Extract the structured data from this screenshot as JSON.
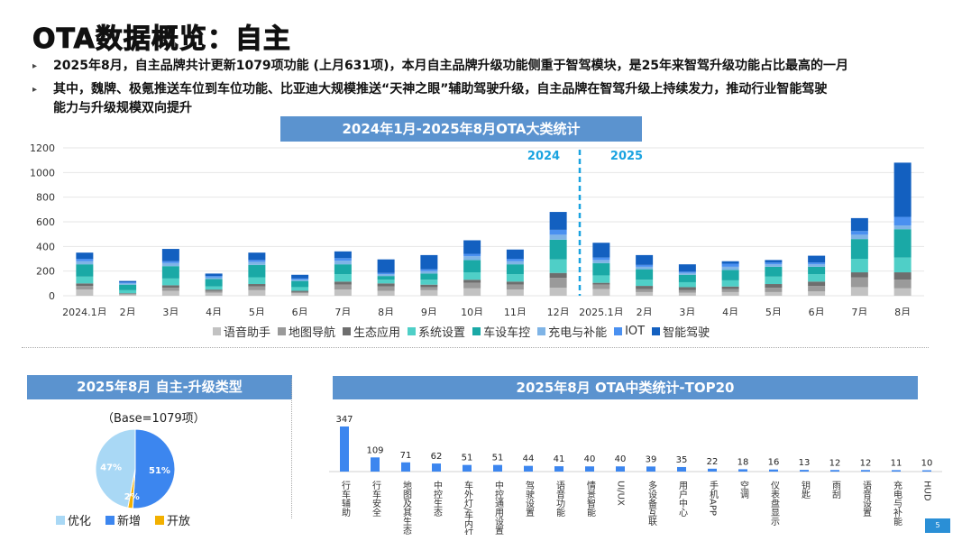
{
  "header": {
    "title": "OTA数据概览：自主",
    "bullets": [
      "2025年8月，自主品牌共计更新1079项功能 (上月631项)，本月自主品牌升级功能侧重于智驾模块，是25年来智驾升级功能占比最高的一月",
      "其中，魏牌、极氪推送车位到车位功能、比亚迪大规模推送“天神之眼”辅助驾驶升级，自主品牌在智驾升级上持续发力，推动行业智能驾驶",
      "能力与升级规模双向提升"
    ]
  },
  "banners": {
    "main_chart": "2024年1月-2025年8月OTA大类统计",
    "pie": "2025年8月 自主-升级类型",
    "top20": "2025年8月 OTA中类统计-TOP20"
  },
  "colors": {
    "banner": "#5b93cf",
    "series": [
      "#c2c2c2",
      "#9a9a9a",
      "#6e6e6e",
      "#4fcfc7",
      "#1aa9a6",
      "#7fb4e6",
      "#4a90f0",
      "#1360c0"
    ],
    "pie": [
      "#a9d8f5",
      "#3c86ef",
      "#f2b000"
    ],
    "top20_bar": "#3c86ef",
    "divider": "#1aa3e0"
  },
  "chart_data": [
    {
      "type": "stacked_bar",
      "title": "2024年1月-2025年8月OTA大类统计",
      "categories": [
        "2024.1月",
        "2月",
        "3月",
        "4月",
        "5月",
        "6月",
        "7月",
        "8月",
        "9月",
        "10月",
        "11月",
        "12月",
        "2025.1月",
        "2月",
        "3月",
        "4月",
        "5月",
        "6月",
        "7月",
        "8月"
      ],
      "ylim": [
        0,
        1200
      ],
      "yticks": [
        0,
        200,
        400,
        600,
        800,
        1000,
        1200
      ],
      "grid": true,
      "divider_labels": [
        "2024",
        "2025"
      ],
      "legend_position": "bottom",
      "series": [
        {
          "name": "语音助手",
          "values": [
            50,
            10,
            40,
            25,
            45,
            20,
            50,
            40,
            45,
            60,
            50,
            65,
            55,
            30,
            25,
            30,
            30,
            35,
            70,
            60
          ]
        },
        {
          "name": "地图导航",
          "values": [
            30,
            5,
            25,
            15,
            30,
            10,
            40,
            35,
            25,
            45,
            40,
            80,
            35,
            25,
            20,
            25,
            35,
            45,
            80,
            70
          ]
        },
        {
          "name": "生态应用",
          "values": [
            20,
            5,
            20,
            10,
            20,
            10,
            25,
            25,
            20,
            25,
            25,
            40,
            15,
            25,
            25,
            20,
            30,
            35,
            40,
            60
          ]
        },
        {
          "name": "系统设置",
          "values": [
            55,
            25,
            55,
            25,
            55,
            30,
            60,
            30,
            40,
            60,
            60,
            110,
            60,
            50,
            40,
            50,
            60,
            60,
            110,
            120
          ]
        },
        {
          "name": "车设车控",
          "values": [
            100,
            45,
            100,
            60,
            100,
            50,
            80,
            30,
            50,
            100,
            80,
            160,
            100,
            85,
            60,
            85,
            80,
            60,
            160,
            230
          ]
        },
        {
          "name": "充电与补能",
          "values": [
            25,
            10,
            25,
            15,
            25,
            10,
            30,
            15,
            20,
            30,
            25,
            40,
            25,
            20,
            15,
            25,
            20,
            20,
            35,
            30
          ]
        },
        {
          "name": "IOT",
          "values": [
            20,
            8,
            15,
            10,
            15,
            10,
            20,
            10,
            15,
            20,
            20,
            40,
            20,
            15,
            10,
            25,
            15,
            15,
            30,
            70
          ]
        },
        {
          "name": "智能驾驶",
          "values": [
            50,
            12,
            100,
            20,
            60,
            30,
            55,
            110,
            115,
            110,
            75,
            145,
            120,
            80,
            60,
            20,
            20,
            55,
            105,
            440
          ]
        }
      ]
    },
    {
      "type": "pie",
      "title": "2025年8月 自主-升级类型",
      "base_label": "（Base=1079项）",
      "slices": [
        {
          "name": "优化",
          "value": 47,
          "label": "47%"
        },
        {
          "name": "新增",
          "value": 51,
          "label": "51%"
        },
        {
          "name": "开放",
          "value": 2,
          "label": "2%"
        }
      ],
      "legend_position": "bottom"
    },
    {
      "type": "bar",
      "title": "2025年8月 OTA中类统计-TOP20",
      "categories": [
        "行车辅助",
        "行车安全",
        "地图及其生态",
        "中控生态",
        "车外灯/车内灯",
        "中控通用设置",
        "驾驶设置",
        "语音功能",
        "情景智能",
        "UI/UX",
        "多设备互联",
        "用户中心",
        "手机APP",
        "空调",
        "仪表盘显示",
        "钥匙",
        "雨刮",
        "语音设置",
        "充电与补能",
        "HUD"
      ],
      "values": [
        347,
        109,
        71,
        62,
        51,
        51,
        44,
        41,
        40,
        40,
        39,
        35,
        22,
        18,
        16,
        13,
        12,
        12,
        11,
        10
      ]
    }
  ],
  "footer": {
    "page_number": "5"
  }
}
